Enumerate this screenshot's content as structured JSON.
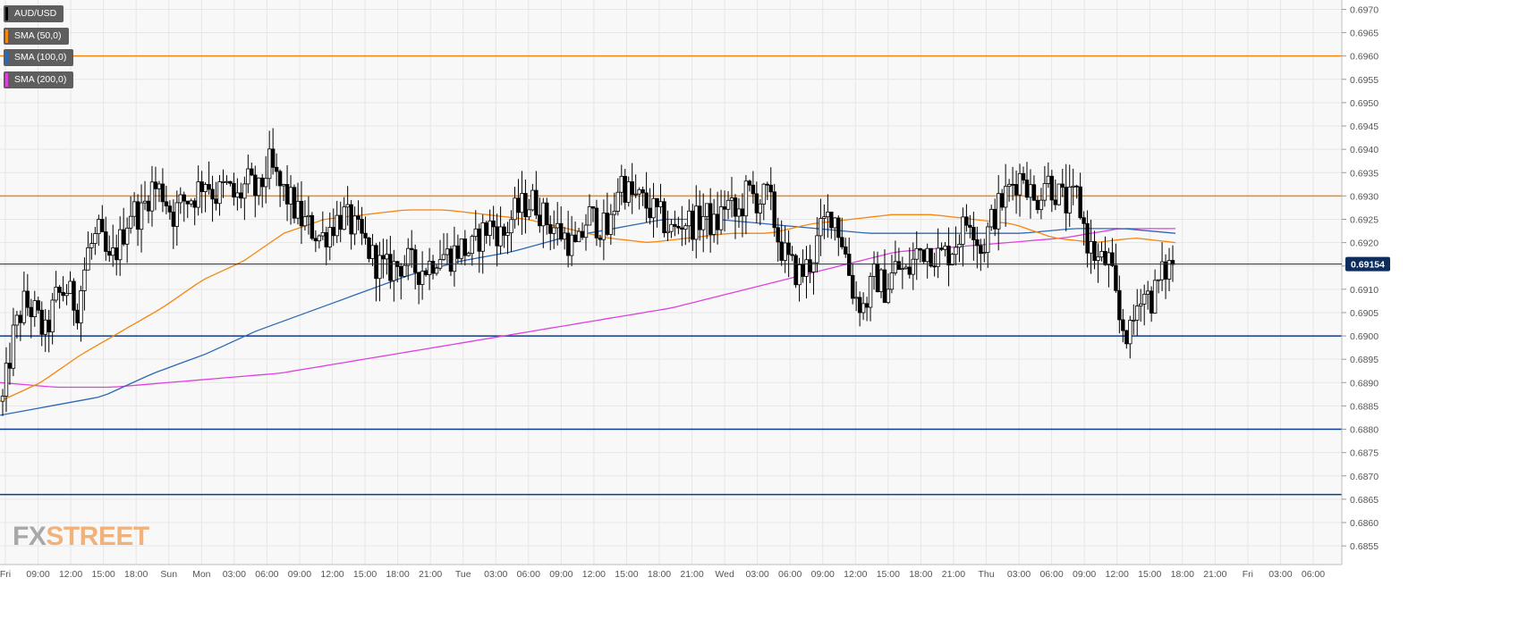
{
  "chart_data": {
    "type": "candlestick",
    "symbol": "AUD/USD",
    "ylim": [
      0.6851,
      0.6972
    ],
    "y_ticks": [
      "0.6855",
      "0.6860",
      "0.6865",
      "0.6870",
      "0.6875",
      "0.6880",
      "0.6885",
      "0.6890",
      "0.6895",
      "0.6900",
      "0.6905",
      "0.6910",
      "0.6915",
      "0.6920",
      "0.6925",
      "0.6930",
      "0.6935",
      "0.6940",
      "0.6945",
      "0.6950",
      "0.6955",
      "0.6960",
      "0.6965",
      "0.6970"
    ],
    "x_ticks": [
      "Fri",
      "09:00",
      "12:00",
      "15:00",
      "18:00",
      "Sun",
      "Mon",
      "03:00",
      "06:00",
      "09:00",
      "12:00",
      "15:00",
      "18:00",
      "21:00",
      "Tue",
      "03:00",
      "06:00",
      "09:00",
      "12:00",
      "15:00",
      "18:00",
      "21:00",
      "Wed",
      "03:00",
      "06:00",
      "09:00",
      "12:00",
      "15:00",
      "18:00",
      "21:00",
      "Thu",
      "03:00",
      "06:00",
      "09:00",
      "12:00",
      "15:00",
      "18:00",
      "21:00",
      "Fri",
      "03:00",
      "06:00"
    ],
    "current_price": "0.69154",
    "horizontal_levels": [
      {
        "value": 0.696,
        "color": "#f5860f"
      },
      {
        "value": 0.693,
        "color": "#f5860f"
      },
      {
        "value": 0.69,
        "color": "#0b3b8c"
      },
      {
        "value": 0.688,
        "color": "#0b3b8c"
      },
      {
        "value": 0.6866,
        "color": "#0b3b8c"
      }
    ],
    "price_path": [
      0.6886,
      0.69,
      0.6907,
      0.6905,
      0.69,
      0.6908,
      0.691,
      0.6906,
      0.6918,
      0.6922,
      0.6915,
      0.692,
      0.6927,
      0.6926,
      0.6932,
      0.6931,
      0.6926,
      0.6929,
      0.693,
      0.6934,
      0.693,
      0.6932,
      0.6929,
      0.6933,
      0.693,
      0.6937,
      0.6932,
      0.6929,
      0.6925,
      0.6923,
      0.6921,
      0.6924,
      0.6926,
      0.6923,
      0.692,
      0.6916,
      0.6914,
      0.6915,
      0.6916,
      0.6914,
      0.6915,
      0.6918,
      0.6917,
      0.6919,
      0.6918,
      0.6922,
      0.6924,
      0.6921,
      0.6926,
      0.6928,
      0.6929,
      0.6925,
      0.6923,
      0.6921,
      0.6918,
      0.6926,
      0.6924,
      0.6922,
      0.6934,
      0.693,
      0.6929,
      0.6927,
      0.6925,
      0.6922,
      0.6925,
      0.6924,
      0.6926,
      0.6923,
      0.6929,
      0.6925,
      0.6931,
      0.6929,
      0.693,
      0.692,
      0.6915,
      0.6913,
      0.6916,
      0.6923,
      0.6927,
      0.692,
      0.6909,
      0.6906,
      0.6913,
      0.691,
      0.6915,
      0.6913,
      0.6918,
      0.6919,
      0.6917,
      0.6918,
      0.6922,
      0.6926,
      0.6918,
      0.6925,
      0.6929,
      0.6933,
      0.6935,
      0.6928,
      0.6934,
      0.6931,
      0.6928,
      0.693,
      0.692,
      0.6916,
      0.6916,
      0.6903,
      0.69,
      0.691,
      0.6908,
      0.6913,
      0.6916
    ],
    "sma_50_path": [
      0.6886,
      0.689,
      0.6896,
      0.6901,
      0.6906,
      0.6912,
      0.6916,
      0.6922,
      0.6925,
      0.6926,
      0.6927,
      0.6927,
      0.6926,
      0.6925,
      0.6923,
      0.6921,
      0.692,
      0.6921,
      0.6922,
      0.6922,
      0.6924,
      0.6925,
      0.6926,
      0.6926,
      0.6925,
      0.6924,
      0.6921,
      0.692,
      0.6921,
      0.692
    ],
    "sma_100_path": [
      0.6883,
      0.6885,
      0.6887,
      0.6892,
      0.6896,
      0.6901,
      0.6905,
      0.6909,
      0.6913,
      0.6916,
      0.6918,
      0.6921,
      0.6923,
      0.6925,
      0.6925,
      0.6924,
      0.6923,
      0.6922,
      0.6922,
      0.6922,
      0.6922,
      0.6923,
      0.6923,
      0.6922
    ],
    "sma_200_path": [
      0.689,
      0.6889,
      0.6889,
      0.689,
      0.6891,
      0.6892,
      0.6894,
      0.6896,
      0.6898,
      0.69,
      0.6902,
      0.6904,
      0.6906,
      0.6909,
      0.6912,
      0.6915,
      0.6918,
      0.6919,
      0.692,
      0.6921,
      0.6923,
      0.6923
    ]
  },
  "legend": [
    {
      "label": "AUD/USD",
      "color": "#000000"
    },
    {
      "label": "SMA (50,0)",
      "color": "#f5860f"
    },
    {
      "label": "SMA (100,0)",
      "color": "#2d68b4"
    },
    {
      "label": "SMA (200,0)",
      "color": "#e040e0"
    }
  ],
  "watermark": {
    "part1": "FX",
    "part2": "STREET"
  },
  "colors": {
    "sma50": "#f5860f",
    "sma100": "#2d68b4",
    "sma200": "#e040e0",
    "grid": "#e6e6e6",
    "plot_bg": "#f8f8f8",
    "price_label_bg": "#0d2e5c"
  }
}
